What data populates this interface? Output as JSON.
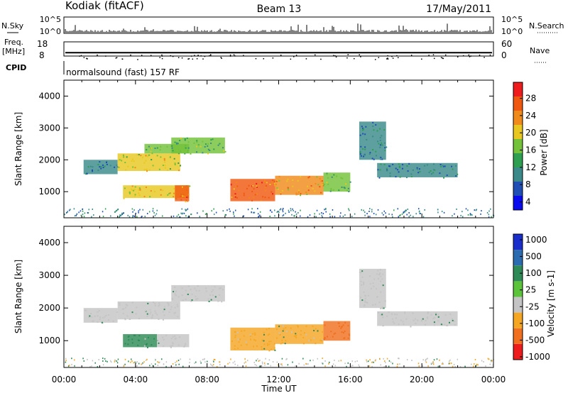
{
  "header": {
    "site": "Kodiak (fitACF)",
    "beam": "Beam 13",
    "date": "17/May/2011"
  },
  "status_panels": {
    "nsky_label": "N.Sky",
    "nsearch_label": "N.Search",
    "freq_label_line1": "Freq.",
    "freq_label_line2": "[MHz]",
    "nave_label": "Nave",
    "cpid_label": "CPID",
    "nsky_ticks": [
      "10^5",
      "10^0"
    ],
    "nsearch_ticks": [
      "10^5",
      "10^0"
    ],
    "freq_ticks": [
      "18",
      "8"
    ],
    "nave_ticks": [
      "60",
      "0"
    ],
    "cpid_text": "normalsound (fast) 157 RF",
    "freq_mhz": 10.4,
    "nave": 51
  },
  "chart_data": [
    {
      "type": "heatmap",
      "name": "power",
      "ylabel": "Slant Range [km]",
      "xlabel": "Time UT",
      "xlim_hours": [
        0,
        24
      ],
      "ylim_km": [
        180,
        4500
      ],
      "yticks": [
        "1000",
        "2000",
        "3000",
        "4000"
      ],
      "xticks": [
        "00:00",
        "04:00",
        "08:00",
        "12:00",
        "16:00",
        "20:00",
        "00:00"
      ],
      "colorbar": {
        "label": "Power [dB]",
        "ticks": [
          "28",
          "24",
          "20",
          "16",
          "12",
          "8",
          "4"
        ],
        "colors": [
          "#0a0aee",
          "#1f4fb5",
          "#3a8a8a",
          "#2e9e50",
          "#74c23a",
          "#e8c820",
          "#f08a1a",
          "#f05810",
          "#ee1c1c"
        ]
      },
      "regions": [
        {
          "t0": 1.1,
          "t1": 3.0,
          "r0": 1550,
          "r1": 2000,
          "value": 8
        },
        {
          "t0": 3.0,
          "t1": 6.5,
          "r0": 1650,
          "r1": 2200,
          "value": 18
        },
        {
          "t0": 4.5,
          "t1": 7.0,
          "r0": 2200,
          "r1": 2500,
          "value": 14
        },
        {
          "t0": 6.0,
          "t1": 9.0,
          "r0": 2200,
          "r1": 2700,
          "value": 14
        },
        {
          "t0": 3.3,
          "t1": 7.0,
          "r0": 800,
          "r1": 1200,
          "value": 20
        },
        {
          "t0": 6.2,
          "t1": 7.0,
          "r0": 700,
          "r1": 1200,
          "value": 26
        },
        {
          "t0": 9.3,
          "t1": 11.8,
          "r0": 700,
          "r1": 1400,
          "value": 26
        },
        {
          "t0": 11.8,
          "t1": 14.5,
          "r0": 900,
          "r1": 1500,
          "value": 22
        },
        {
          "t0": 14.5,
          "t1": 16.0,
          "r0": 1000,
          "r1": 1600,
          "value": 14
        },
        {
          "t0": 16.5,
          "t1": 18.0,
          "r0": 2000,
          "r1": 3200,
          "value": 8
        },
        {
          "t0": 17.5,
          "t1": 22.0,
          "r0": 1450,
          "r1": 1900,
          "value": 8
        }
      ]
    },
    {
      "type": "heatmap",
      "name": "velocity",
      "ylabel": "Slant Range [km]",
      "xlabel": "Time UT",
      "xlim_hours": [
        0,
        24
      ],
      "ylim_km": [
        180,
        4500
      ],
      "yticks": [
        "1000",
        "2000",
        "3000",
        "4000"
      ],
      "xticks": [
        "00:00",
        "04:00",
        "08:00",
        "12:00",
        "16:00",
        "20:00",
        "00:00"
      ],
      "colorbar": {
        "label": "Velocity [m s-1]",
        "ticks": [
          "1000",
          "500",
          "100",
          "25",
          "-25",
          "-100",
          "-500",
          "-1000"
        ],
        "colors": [
          "#1a2ecc",
          "#2b6cb0",
          "#2e8b57",
          "#5cc43a",
          "#c4c4c4",
          "#f5a623",
          "#f07020",
          "#ee1c1c"
        ]
      },
      "regions": [
        {
          "t0": 1.1,
          "t1": 3.0,
          "r0": 1550,
          "r1": 2000,
          "value": 0
        },
        {
          "t0": 3.0,
          "t1": 6.5,
          "r0": 1650,
          "r1": 2200,
          "value": 0
        },
        {
          "t0": 6.0,
          "t1": 9.0,
          "r0": 2200,
          "r1": 2700,
          "value": 0
        },
        {
          "t0": 3.3,
          "t1": 5.2,
          "r0": 800,
          "r1": 1200,
          "value": 100
        },
        {
          "t0": 5.2,
          "t1": 7.0,
          "r0": 800,
          "r1": 1200,
          "value": 0
        },
        {
          "t0": 9.3,
          "t1": 11.8,
          "r0": 700,
          "r1": 1400,
          "value": -100
        },
        {
          "t0": 11.8,
          "t1": 14.5,
          "r0": 900,
          "r1": 1500,
          "value": -100
        },
        {
          "t0": 14.5,
          "t1": 16.0,
          "r0": 1000,
          "r1": 1600,
          "value": -500
        },
        {
          "t0": 16.5,
          "t1": 18.0,
          "r0": 2000,
          "r1": 3200,
          "value": 0
        },
        {
          "t0": 17.5,
          "t1": 22.0,
          "r0": 1450,
          "r1": 1900,
          "value": 0
        }
      ]
    }
  ]
}
